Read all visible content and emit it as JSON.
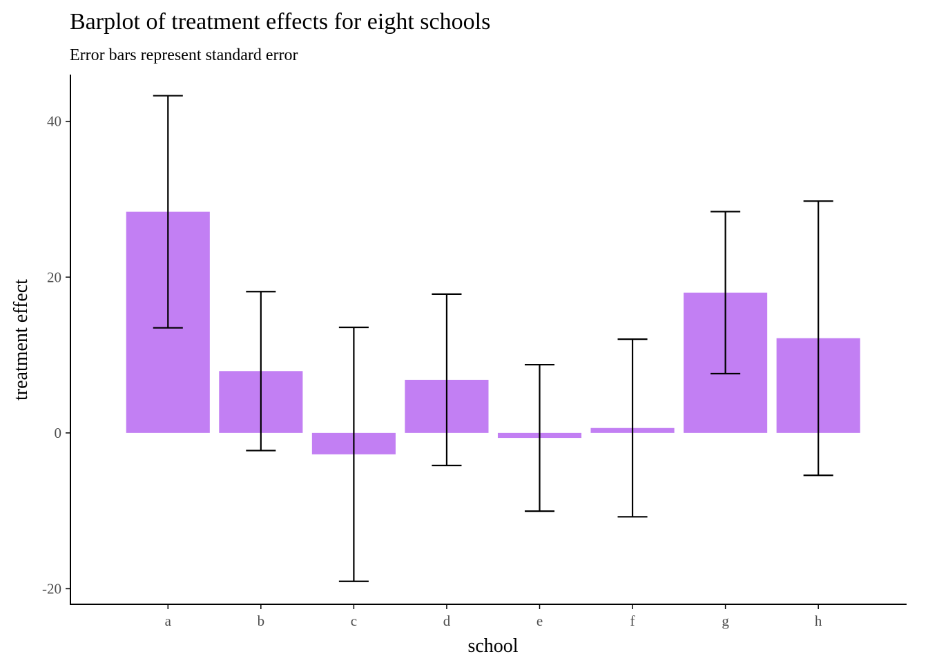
{
  "chart_data": {
    "type": "bar",
    "title": "Barplot of treatment effects for eight schools",
    "subtitle": "Error bars represent standard error",
    "xlabel": "school",
    "ylabel": "treatment effect",
    "categories": [
      "a",
      "b",
      "c",
      "d",
      "e",
      "f",
      "g",
      "h"
    ],
    "values": [
      28.39,
      7.94,
      -2.75,
      6.82,
      -0.64,
      0.63,
      18.01,
      12.16
    ],
    "errors": [
      14.9,
      10.2,
      16.3,
      11.0,
      9.4,
      11.4,
      10.4,
      17.6
    ],
    "ylim": [
      -22,
      46
    ],
    "yticks": [
      -20,
      0,
      20,
      40
    ],
    "grid": false,
    "legend": "none",
    "colors": {
      "bar": "#c27ff3",
      "errorbar": "#000000",
      "axis": "#000000",
      "tick_text": "#4d4d4d"
    }
  }
}
